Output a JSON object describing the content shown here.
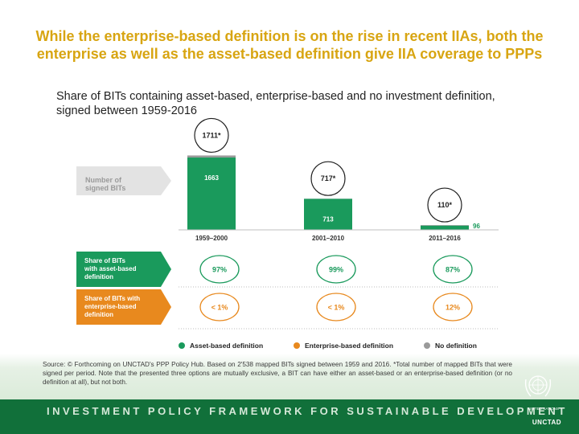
{
  "title": "While the enterprise-based definition is on the rise in recent IIAs, both the enterprise as well as the asset-based definition give IIA coverage to PPPs",
  "subtitle": "Share of BITs containing asset-based, enterprise-based and no investment definition, signed between 1959-2016",
  "chart_data": {
    "type": "bar",
    "y_axis_label": "Number of signed BITs",
    "categories": [
      "1959–2000",
      "2001–2010",
      "2011–2016"
    ],
    "series": [
      {
        "name": "Asset-based definition",
        "color": "#1a9a5c",
        "values": [
          1663,
          713,
          96
        ],
        "value_labels": [
          "1663",
          "713",
          "96"
        ]
      },
      {
        "name": "Enterprise-based definition",
        "color": "#e8891e",
        "values": [
          null,
          null,
          null
        ]
      },
      {
        "name": "No definition",
        "color": "#9a9a9a",
        "values": [
          null,
          null,
          null
        ]
      }
    ],
    "totals": [
      1711,
      717,
      110
    ],
    "total_labels": [
      "1711*",
      "717*",
      "110*"
    ],
    "share_rows": [
      {
        "label": "Share of BITs with asset-based definition",
        "color": "#1a9a5c",
        "values": [
          "97%",
          "99%",
          "87%"
        ]
      },
      {
        "label": "Share of BITs with enterprise-based definition",
        "color": "#e8891e",
        "values": [
          "< 1%",
          "< 1%",
          "12%"
        ]
      }
    ],
    "legend": [
      "Asset-based definition",
      "Enterprise-based definition",
      "No definition"
    ],
    "ylim": [
      0,
      1800
    ]
  },
  "source": "Source: © Forthcoming on UNCTAD's PPP Policy Hub. Based on 2'538 mapped BITs signed between 1959 and 2016. *Total number of mapped BITs that were signed per period. Note that the presented three options are mutually exclusive, a BIT can have either an asset-based or an enterprise-based definition (or no definition at all), but not both.",
  "banner": "INVESTMENT POLICY FRAMEWORK FOR SUSTAINABLE DEVELOPMENT",
  "org": "UNCTAD",
  "un_name": "UNITED NATIONS"
}
